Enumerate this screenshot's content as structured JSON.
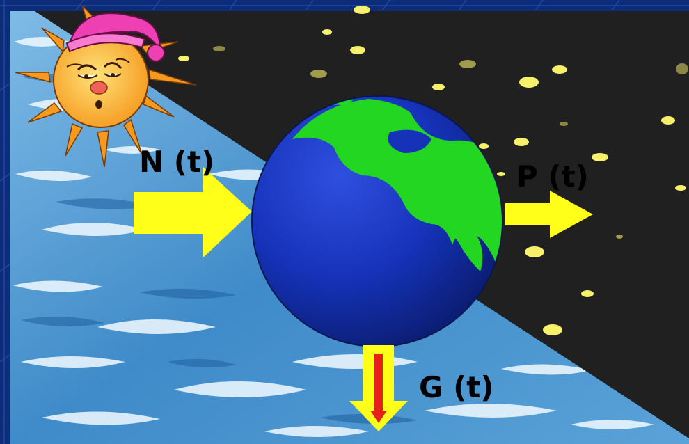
{
  "labels": {
    "n": "N (t)",
    "p": "P (t)",
    "g": "G (t)"
  },
  "colors": {
    "frame": "#0d2c7a",
    "night_sky": "#202020",
    "water": "#4a92cc",
    "star": "#f6f06a",
    "arrow": "#ffff1a",
    "inner_arrow": "#e8201a",
    "ocean": "#1532b8",
    "land": "#22d622",
    "sun": "#f5a32a",
    "nightcap": "#ee3fb3"
  },
  "icons": {
    "sun": "sleepy-sun-icon",
    "earth": "earth-globe-icon"
  }
}
